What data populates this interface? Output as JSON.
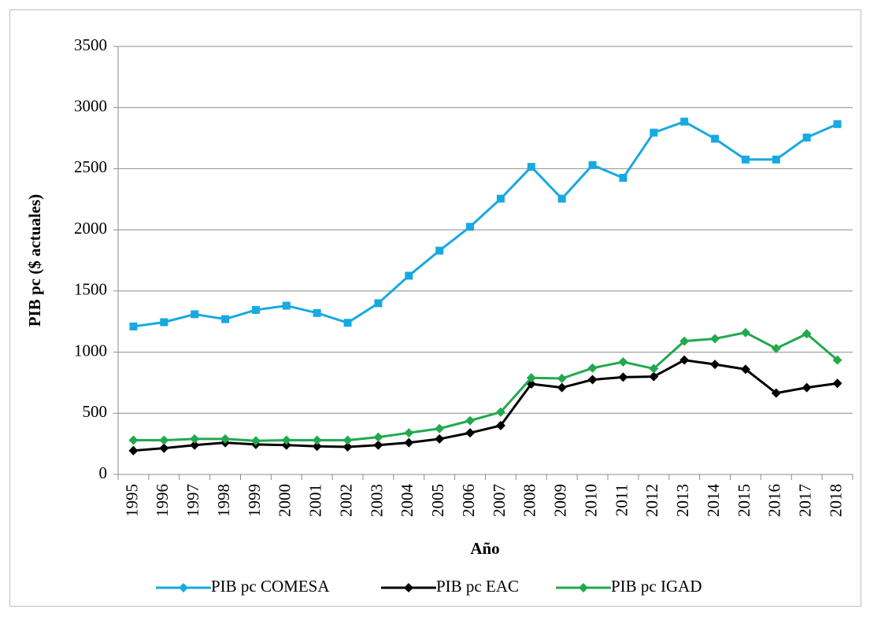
{
  "chart_data": {
    "type": "line",
    "y_label": "PIB pc ($ actuales)",
    "x_label": "Año",
    "categories": [
      "1995",
      "1996",
      "1997",
      "1998",
      "1999",
      "2000",
      "2001",
      "2002",
      "2003",
      "2004",
      "2005",
      "2006",
      "2007",
      "2008",
      "2009",
      "2010",
      "2011",
      "2012",
      "2013",
      "2014",
      "2015",
      "2016",
      "2017",
      "2018"
    ],
    "series": [
      {
        "name": "PIB pc COMESA",
        "color": "#17a9e1",
        "marker": "square",
        "values": [
          1210,
          1245,
          1310,
          1270,
          1345,
          1380,
          1320,
          1240,
          1400,
          1625,
          1830,
          2025,
          2255,
          2515,
          2255,
          2530,
          2425,
          2795,
          2885,
          2745,
          2575,
          2575,
          2755,
          2865
        ]
      },
      {
        "name": "PIB pc EAC",
        "color": "#000000",
        "marker": "diamond",
        "values": [
          195,
          215,
          240,
          260,
          245,
          240,
          230,
          225,
          240,
          260,
          290,
          340,
          400,
          740,
          710,
          775,
          795,
          800,
          935,
          900,
          860,
          665,
          710,
          745
        ]
      },
      {
        "name": "PIB pc IGAD",
        "color": "#22a94e",
        "marker": "diamond",
        "values": [
          280,
          280,
          290,
          290,
          275,
          280,
          280,
          280,
          305,
          340,
          375,
          440,
          510,
          790,
          785,
          870,
          920,
          865,
          1090,
          1110,
          1160,
          1030,
          1150,
          935
        ]
      }
    ],
    "ylim": [
      0,
      3500
    ],
    "yticks": [
      0,
      500,
      1000,
      1500,
      2000,
      2500,
      3000,
      3500
    ],
    "grid": true,
    "legend": "bottom"
  }
}
